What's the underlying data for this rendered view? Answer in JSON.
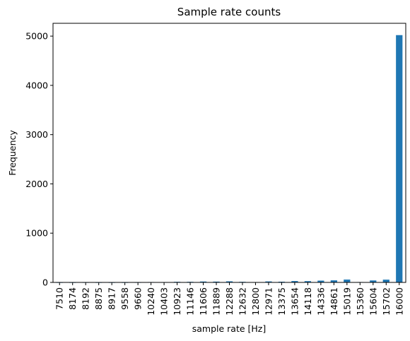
{
  "chart_data": {
    "type": "bar",
    "title": "Sample rate counts",
    "xlabel": "sample rate [Hz]",
    "ylabel": "Frequency",
    "categories": [
      "7510",
      "8174",
      "8192",
      "8875",
      "8917",
      "9558",
      "9660",
      "10240",
      "10403",
      "10923",
      "11146",
      "11606",
      "11889",
      "12288",
      "12632",
      "12800",
      "12971",
      "13375",
      "13654",
      "14118",
      "14336",
      "14861",
      "15019",
      "15360",
      "15604",
      "15702",
      "16000"
    ],
    "values": [
      2,
      2,
      3,
      2,
      2,
      2,
      3,
      8,
      4,
      12,
      12,
      18,
      16,
      22,
      12,
      4,
      20,
      14,
      28,
      26,
      36,
      42,
      58,
      8,
      40,
      56,
      5020
    ],
    "ylim": [
      0,
      5260
    ],
    "yticks": [
      0,
      1000,
      2000,
      3000,
      4000,
      5000
    ],
    "ytick_labels": [
      "0",
      "1000",
      "2000",
      "3000",
      "4000",
      "5000"
    ],
    "bar_color": "#1f77b4",
    "grid": false,
    "legend": "none"
  }
}
